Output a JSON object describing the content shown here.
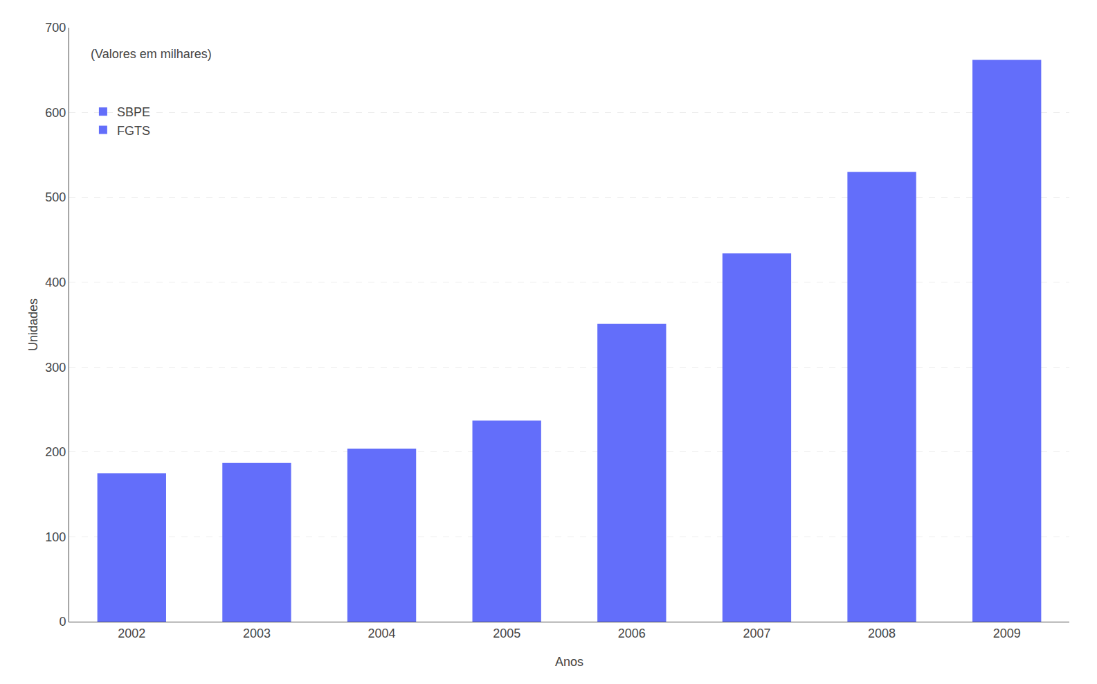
{
  "chart_data": {
    "type": "bar",
    "subtitle": "(Valores em milhares)",
    "xlabel": "Anos",
    "ylabel": "Unidades",
    "categories": [
      "2002",
      "2003",
      "2004",
      "2005",
      "2006",
      "2007",
      "2008",
      "2009"
    ],
    "values": [
      175,
      187,
      204,
      237,
      351,
      434,
      530,
      662
    ],
    "color": "#636efa",
    "legend_labels": [
      "SBPE",
      "FGTS"
    ],
    "legend": "upper left",
    "ylim": [
      0,
      700
    ],
    "yticks": [
      0,
      100,
      200,
      300,
      400,
      500,
      600,
      700
    ],
    "grid": true
  }
}
